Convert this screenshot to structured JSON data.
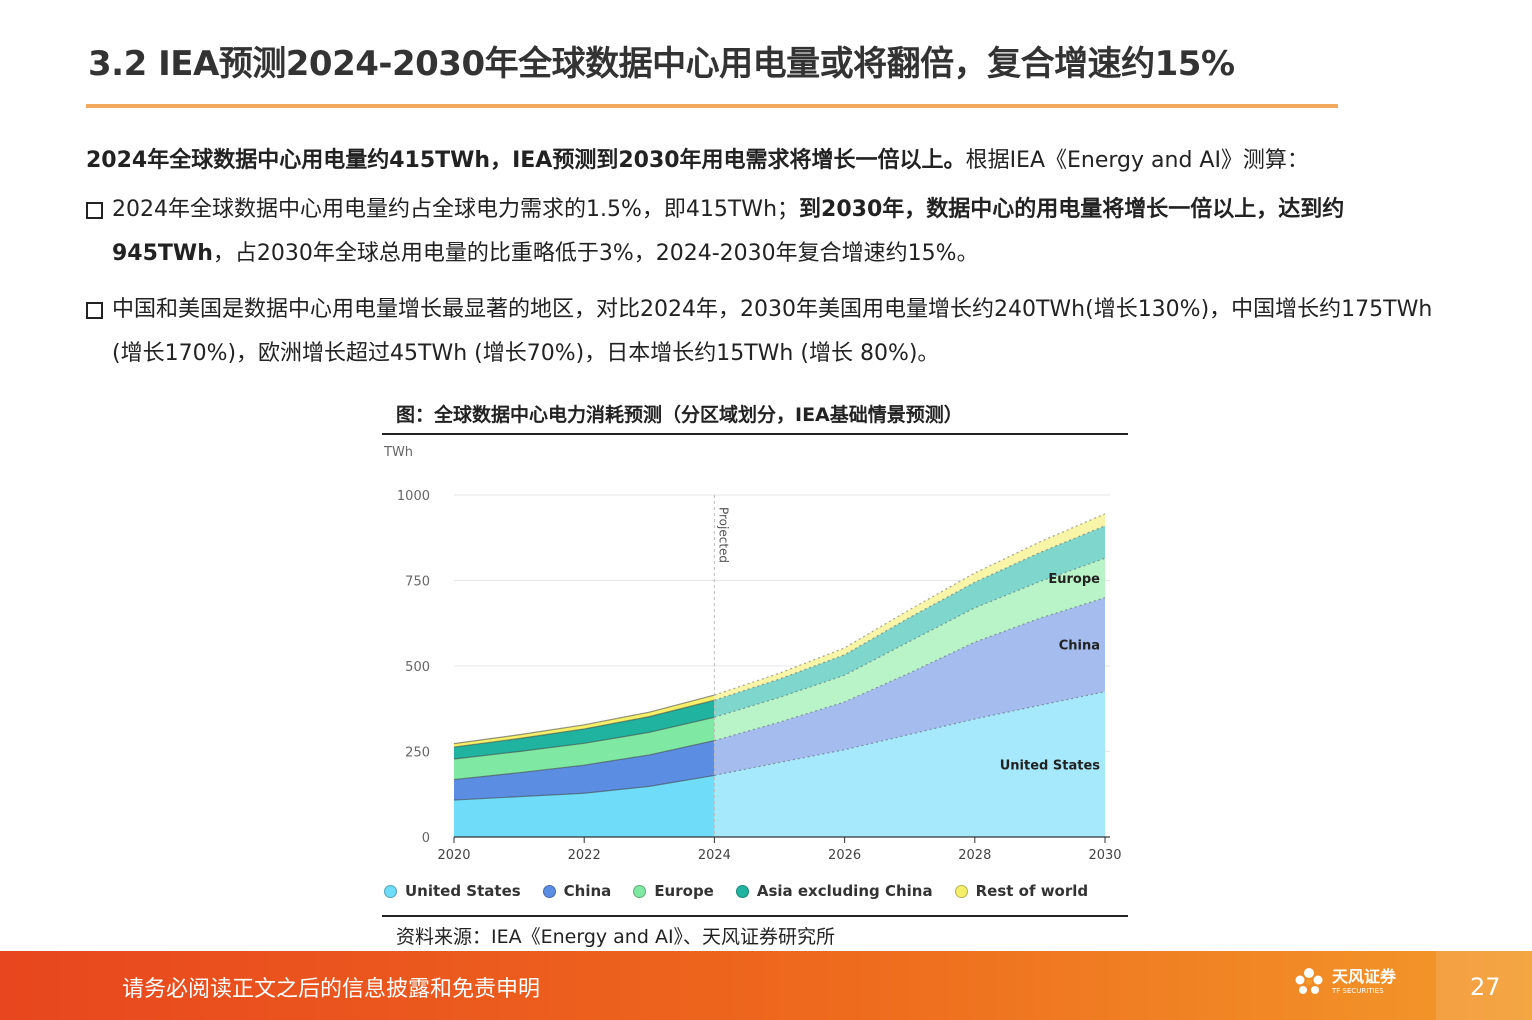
{
  "header": {
    "title": "3.2 IEA预测2024-2030年全球数据中心用电量或将翻倍，复合增速约15%"
  },
  "lead": {
    "bold": "2024年全球数据中心用电量约415TWh，IEA预测到2030年用电需求将增长一倍以上。",
    "normal": "根据IEA《Energy and AI》测算："
  },
  "bullets": [
    {
      "pre": "2024年全球数据中心用电量约占全球电力需求的1.5%，即415TWh；",
      "bold": "到2030年，数据中心的用电量将增长一倍以上，达到约945TWh",
      "post": "，占2030年全球总用电量的比重略低于3%，2024-2030年复合增速约15%。"
    },
    {
      "text": "中国和美国是数据中心用电量增长最显著的地区，对比2024年，2030年美国用电量增长约240TWh(增长130%)，中国增长约175TWh (增长170%)，欧洲增长超过45TWh (增长70%)，日本增长约15TWh (增长 80%)。"
    }
  ],
  "figure": {
    "title": "图：全球数据中心电力消耗预测（分区域划分，IEA基础情景预测）",
    "source": "资料来源：IEA《Energy and AI》、天风证券研究所"
  },
  "chart_data": {
    "type": "area",
    "stacked": true,
    "ylabel": "TWh",
    "ylim": [
      0,
      1000
    ],
    "yticks": [
      0,
      250,
      500,
      750,
      1000
    ],
    "xticks": [
      2020,
      2022,
      2024,
      2026,
      2028,
      2030
    ],
    "projected_from": 2024,
    "projected_label": "Projected",
    "x": [
      2020,
      2021,
      2022,
      2023,
      2024,
      2025,
      2026,
      2027,
      2028,
      2029,
      2030
    ],
    "series": [
      {
        "name": "United States",
        "color": "#6fdcfa",
        "projected_color": "#a6e9fc",
        "values": [
          108,
          118,
          128,
          148,
          180,
          218,
          255,
          300,
          345,
          385,
          425
        ]
      },
      {
        "name": "China",
        "color": "#5b8ee3",
        "projected_color": "#a4bdee",
        "values": [
          60,
          70,
          82,
          92,
          102,
          118,
          140,
          180,
          225,
          255,
          275
        ]
      },
      {
        "name": "Europe",
        "color": "#7fe8a3",
        "projected_color": "#b9f4c8",
        "values": [
          60,
          62,
          64,
          66,
          68,
          72,
          78,
          92,
          100,
          107,
          115
        ]
      },
      {
        "name": "Asia excluding China",
        "color": "#1fb3a0",
        "projected_color": "#7fd6cc",
        "values": [
          35,
          38,
          42,
          46,
          50,
          54,
          60,
          70,
          75,
          85,
          95
        ]
      },
      {
        "name": "Rest of world",
        "color": "#f5ef6a",
        "projected_color": "#f8f5a8",
        "values": [
          10,
          11,
          12,
          13,
          15,
          17,
          20,
          23,
          27,
          31,
          35
        ]
      }
    ],
    "area_labels": [
      {
        "series": "Europe",
        "text": "Europe"
      },
      {
        "series": "China",
        "text": "China"
      },
      {
        "series": "United States",
        "text": "United States"
      }
    ],
    "legend_position": "bottom"
  },
  "footer": {
    "disclaimer": "请务必阅读正文之后的信息披露和免责申明",
    "logo_cn": "天风证券",
    "logo_en": "TF SECURITIES",
    "page": "27"
  }
}
